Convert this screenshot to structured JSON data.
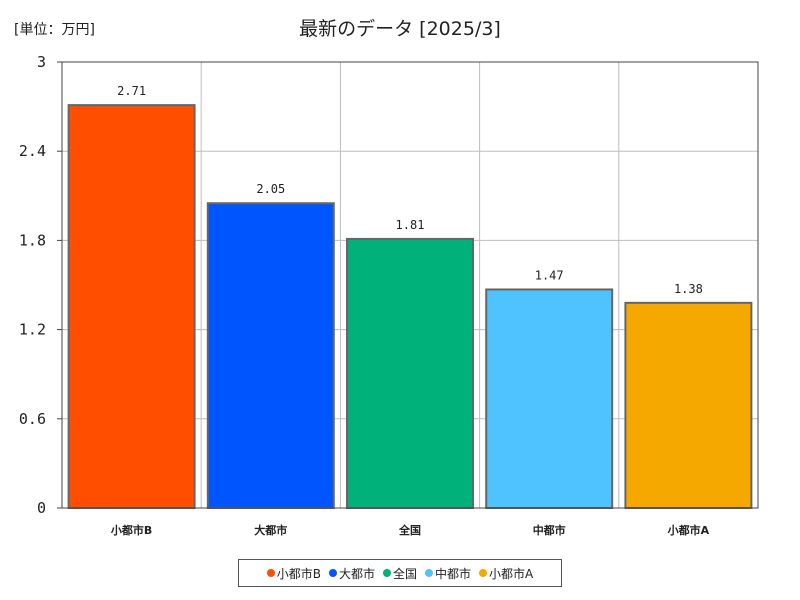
{
  "unit_label": "[単位：万円]",
  "chart_data": {
    "type": "bar",
    "title": "最新のデータ [2025/3]",
    "categories": [
      "小都市B",
      "大都市",
      "全国",
      "中都市",
      "小都市A"
    ],
    "values": [
      2.71,
      2.05,
      1.81,
      1.47,
      1.38
    ],
    "value_labels": [
      "2.71",
      "2.05",
      "1.81",
      "1.47",
      "1.38"
    ],
    "colors": [
      "#ff4e00",
      "#0055ff",
      "#00b27a",
      "#4fc3ff",
      "#f5a800"
    ],
    "ylim": [
      0,
      3
    ],
    "yticks": [
      0,
      0.6,
      1.2,
      1.8,
      2.4,
      3
    ],
    "ytick_labels": [
      "0",
      "0.6",
      "1.2",
      "1.8",
      "2.4",
      "3"
    ],
    "grid": true,
    "legend_position": "bottom",
    "legend": [
      "小都市B",
      "大都市",
      "全国",
      "中都市",
      "小都市A"
    ]
  }
}
